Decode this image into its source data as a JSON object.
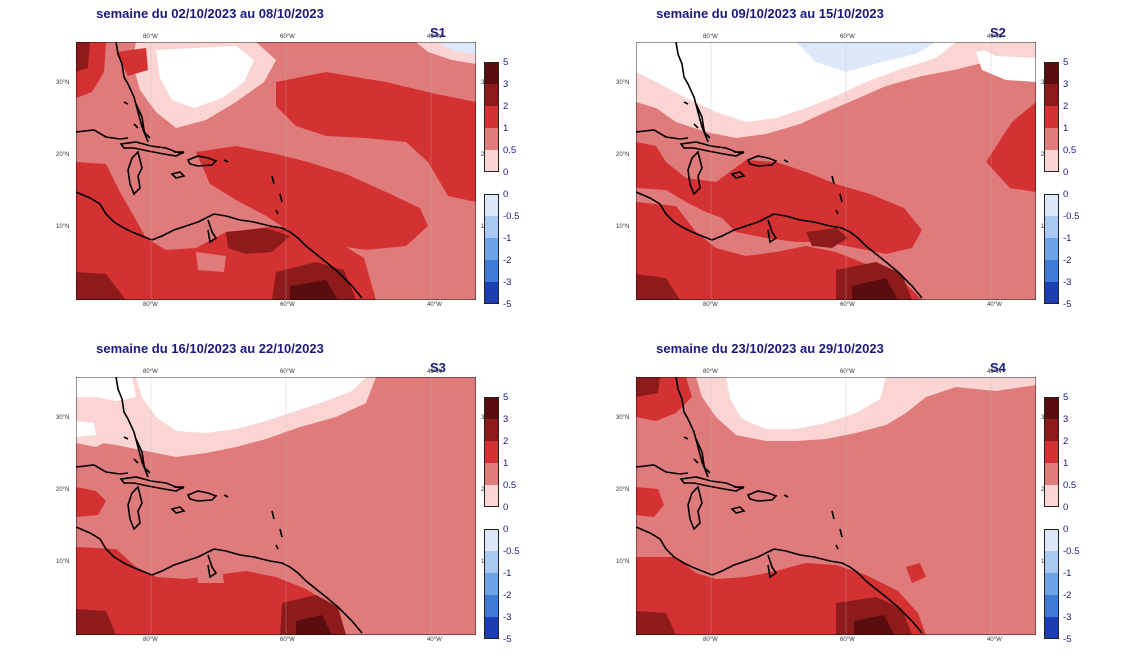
{
  "panels": [
    {
      "id": "S1",
      "title": "semaine du 02/10/2023 au 08/10/2023",
      "label": "S1"
    },
    {
      "id": "S2",
      "title": "semaine du 09/10/2023 au 15/10/2023",
      "label": "S2"
    },
    {
      "id": "S3",
      "title": "semaine du 16/10/2023 au 22/10/2023",
      "label": "S3"
    },
    {
      "id": "S4",
      "title": "semaine du 23/10/2023 au 29/10/2023",
      "label": "S4"
    }
  ],
  "axes": {
    "lon_labels": [
      "80°W",
      "60°W",
      "40°W"
    ],
    "lat_labels": [
      "30°N",
      "20°N",
      "10°N"
    ]
  },
  "legend_positive": {
    "levels": [
      "5",
      "3",
      "2",
      "1",
      "0.5",
      "0"
    ],
    "colors": [
      "#5a0d0d",
      "#8e1b1b",
      "#d43232",
      "#e07b7b",
      "#fbd4d4"
    ]
  },
  "legend_negative": {
    "levels": [
      "0",
      "-0.5",
      "-1",
      "-2",
      "-3",
      "-5"
    ],
    "colors": [
      "#dde9fb",
      "#a9c9f2",
      "#6ea4e6",
      "#3f7bd6",
      "#1b3fae"
    ]
  }
}
